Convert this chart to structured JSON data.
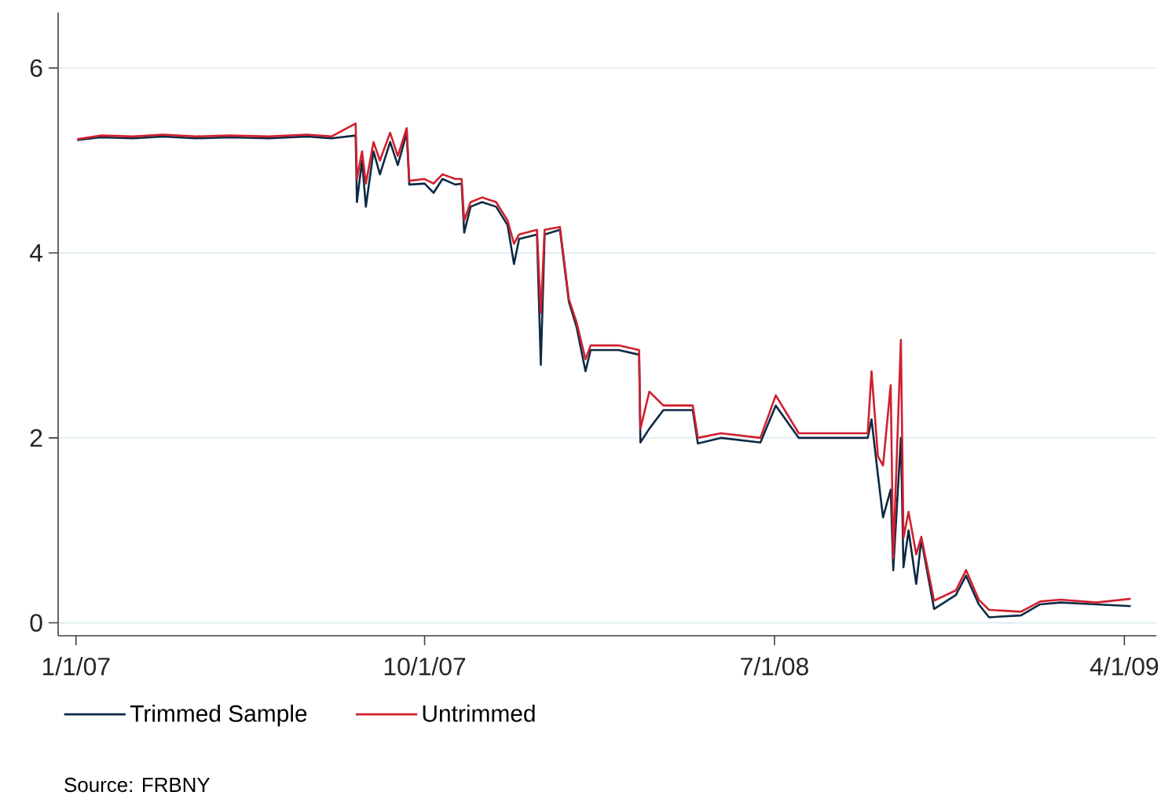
{
  "chart_data": {
    "type": "line",
    "x": [
      "2007-01-02",
      "2007-01-20",
      "2007-02-15",
      "2007-03-10",
      "2007-04-05",
      "2007-05-01",
      "2007-06-01",
      "2007-07-01",
      "2007-07-20",
      "2007-08-08",
      "2007-08-09",
      "2007-08-13",
      "2007-08-16",
      "2007-08-22",
      "2007-08-27",
      "2007-09-04",
      "2007-09-10",
      "2007-09-17",
      "2007-09-19",
      "2007-10-01",
      "2007-10-08",
      "2007-10-15",
      "2007-10-25",
      "2007-10-30",
      "2007-11-01",
      "2007-11-06",
      "2007-11-15",
      "2007-11-26",
      "2007-12-05",
      "2007-12-10",
      "2007-12-14",
      "2007-12-28",
      "2007-12-31",
      "2008-01-03",
      "2008-01-15",
      "2008-01-22",
      "2008-01-28",
      "2008-02-04",
      "2008-02-08",
      "2008-03-01",
      "2008-03-17",
      "2008-03-18",
      "2008-03-25",
      "2008-04-05",
      "2008-04-28",
      "2008-05-02",
      "2008-05-20",
      "2008-06-20",
      "2008-07-02",
      "2008-07-20",
      "2008-08-20",
      "2008-09-12",
      "2008-09-15",
      "2008-09-20",
      "2008-09-24",
      "2008-09-30",
      "2008-10-02",
      "2008-10-08",
      "2008-10-10",
      "2008-10-14",
      "2008-10-20",
      "2008-10-24",
      "2008-11-03",
      "2008-11-20",
      "2008-11-28",
      "2008-12-08",
      "2008-12-16",
      "2009-01-10",
      "2009-01-25",
      "2009-02-10",
      "2009-03-10",
      "2009-04-06"
    ],
    "series": [
      {
        "name": "Trimmed Sample",
        "color": "#0d2a45",
        "values": [
          5.22,
          5.25,
          5.24,
          5.26,
          5.24,
          5.25,
          5.24,
          5.26,
          5.24,
          5.27,
          4.55,
          5.0,
          4.5,
          5.1,
          4.85,
          5.2,
          4.95,
          5.3,
          4.74,
          4.75,
          4.65,
          4.8,
          4.74,
          4.75,
          4.22,
          4.5,
          4.55,
          4.5,
          4.3,
          3.88,
          4.15,
          4.2,
          2.79,
          4.2,
          4.25,
          3.47,
          3.2,
          2.72,
          2.95,
          2.95,
          2.9,
          1.95,
          2.1,
          2.3,
          2.3,
          1.94,
          2.0,
          1.95,
          2.35,
          2.0,
          2.0,
          2.0,
          2.2,
          1.6,
          1.14,
          1.44,
          0.57,
          2.0,
          0.6,
          1.0,
          0.42,
          0.9,
          0.15,
          0.3,
          0.51,
          0.2,
          0.06,
          0.08,
          0.2,
          0.22,
          0.2,
          0.18
        ]
      },
      {
        "name": "Untrimmed",
        "color": "#d0202e",
        "values": [
          5.23,
          5.27,
          5.26,
          5.28,
          5.26,
          5.27,
          5.26,
          5.28,
          5.26,
          5.4,
          4.8,
          5.1,
          4.75,
          5.2,
          5.0,
          5.3,
          5.05,
          5.35,
          4.78,
          4.8,
          4.75,
          4.85,
          4.8,
          4.8,
          4.35,
          4.55,
          4.6,
          4.55,
          4.35,
          4.1,
          4.2,
          4.25,
          3.35,
          4.25,
          4.28,
          3.5,
          3.25,
          2.85,
          3.0,
          3.0,
          2.95,
          2.1,
          2.5,
          2.35,
          2.35,
          2.0,
          2.05,
          2.0,
          2.46,
          2.05,
          2.05,
          2.05,
          2.72,
          1.8,
          1.7,
          2.57,
          0.7,
          3.06,
          0.92,
          1.2,
          0.74,
          0.93,
          0.24,
          0.35,
          0.57,
          0.25,
          0.14,
          0.12,
          0.23,
          0.25,
          0.22,
          0.26
        ]
      }
    ],
    "xlim": [
      "2006-12-18",
      "2009-04-26"
    ],
    "xticks": [
      {
        "value": "2007-01-01",
        "label": "1/1/07"
      },
      {
        "value": "2007-10-01",
        "label": "10/1/07"
      },
      {
        "value": "2008-07-01",
        "label": "7/1/08"
      },
      {
        "value": "2009-04-01",
        "label": "4/1/09"
      }
    ],
    "ylim": [
      -0.14,
      6.6
    ],
    "yticks": [
      0,
      2,
      4,
      6
    ],
    "grid": "y",
    "legend": "bottom",
    "line_style": "solid",
    "annotations": [
      "Source: FRBNY"
    ]
  }
}
